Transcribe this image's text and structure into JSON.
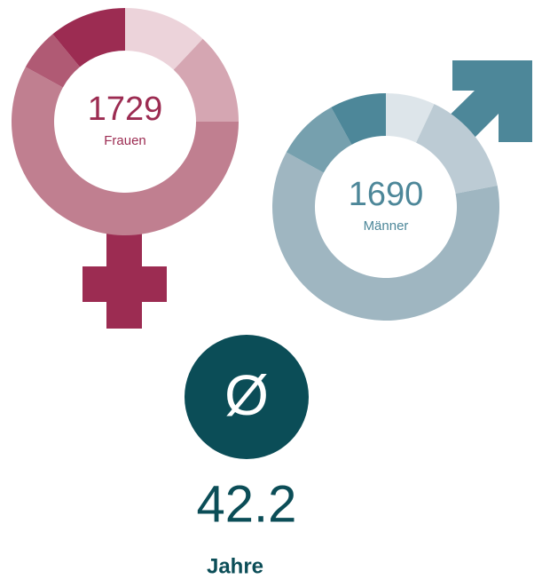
{
  "chart_data": [
    {
      "type": "donut",
      "center_value": 1729,
      "center_label": "Frauen",
      "values": [
        12,
        13,
        58,
        6,
        11
      ],
      "colors": [
        "#ecd3da",
        "#d5a6b2",
        "#c07f90",
        "#b05a74",
        "#9c2c52"
      ],
      "text_color": "#9c2c52"
    },
    {
      "type": "donut",
      "center_value": 1690,
      "center_label": "Männer",
      "values": [
        7,
        15,
        61,
        9,
        8
      ],
      "colors": [
        "#dde5ea",
        "#bccbd4",
        "#9fb6c1",
        "#76a0ae",
        "#4d8799"
      ],
      "text_color": "#4d8799"
    }
  ],
  "average": {
    "symbol": "Ø",
    "value": 42.2,
    "unit": "Jahre",
    "color": "#0b4d57"
  }
}
